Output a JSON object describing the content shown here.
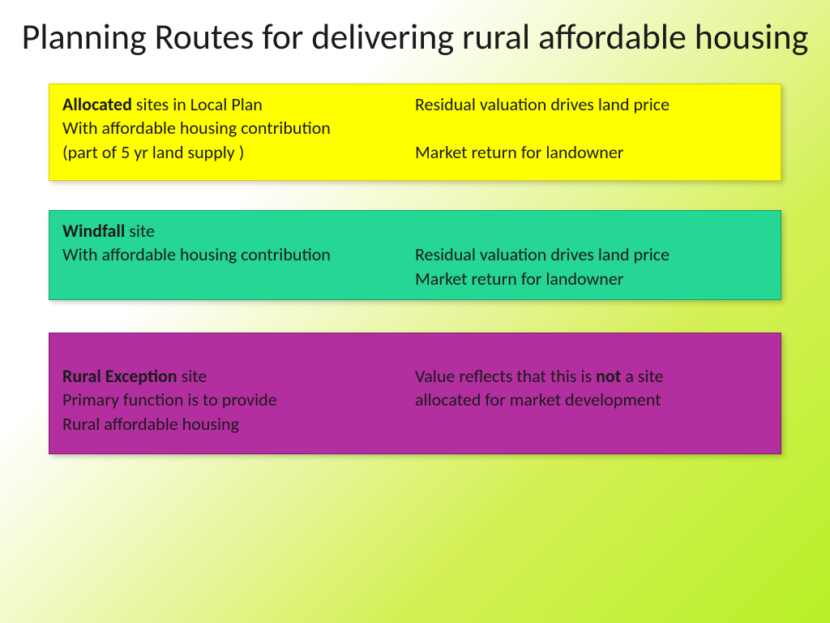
{
  "title": "Planning Routes for delivering rural affordable housing",
  "box1": {
    "bg": "#ffff00",
    "left_bold": "Allocated",
    "left_rest1": " sites in Local Plan",
    "left_line2": "With affordable housing contribution",
    "left_line3": "(part of 5 yr land supply )",
    "right_line1": "Residual valuation drives land price",
    "right_line2": "Market return for landowner"
  },
  "box2": {
    "bg": "#25d695",
    "left_bold": "Windfall",
    "left_rest1": " site",
    "left_line2": "With affordable housing contribution",
    "right_line1": "Residual valuation drives land price",
    "right_line2": "Market return for landowner"
  },
  "box3": {
    "bg": "#b32fa0",
    "left_bold": "Rural Exception",
    "left_rest1": " site",
    "left_line2": "Primary function is to provide",
    "left_line3": "Rural affordable housing",
    "right_pre": "Value reflects that this is ",
    "right_bold": "not",
    "right_post": " a site",
    "right_line2": "allocated for market development"
  }
}
